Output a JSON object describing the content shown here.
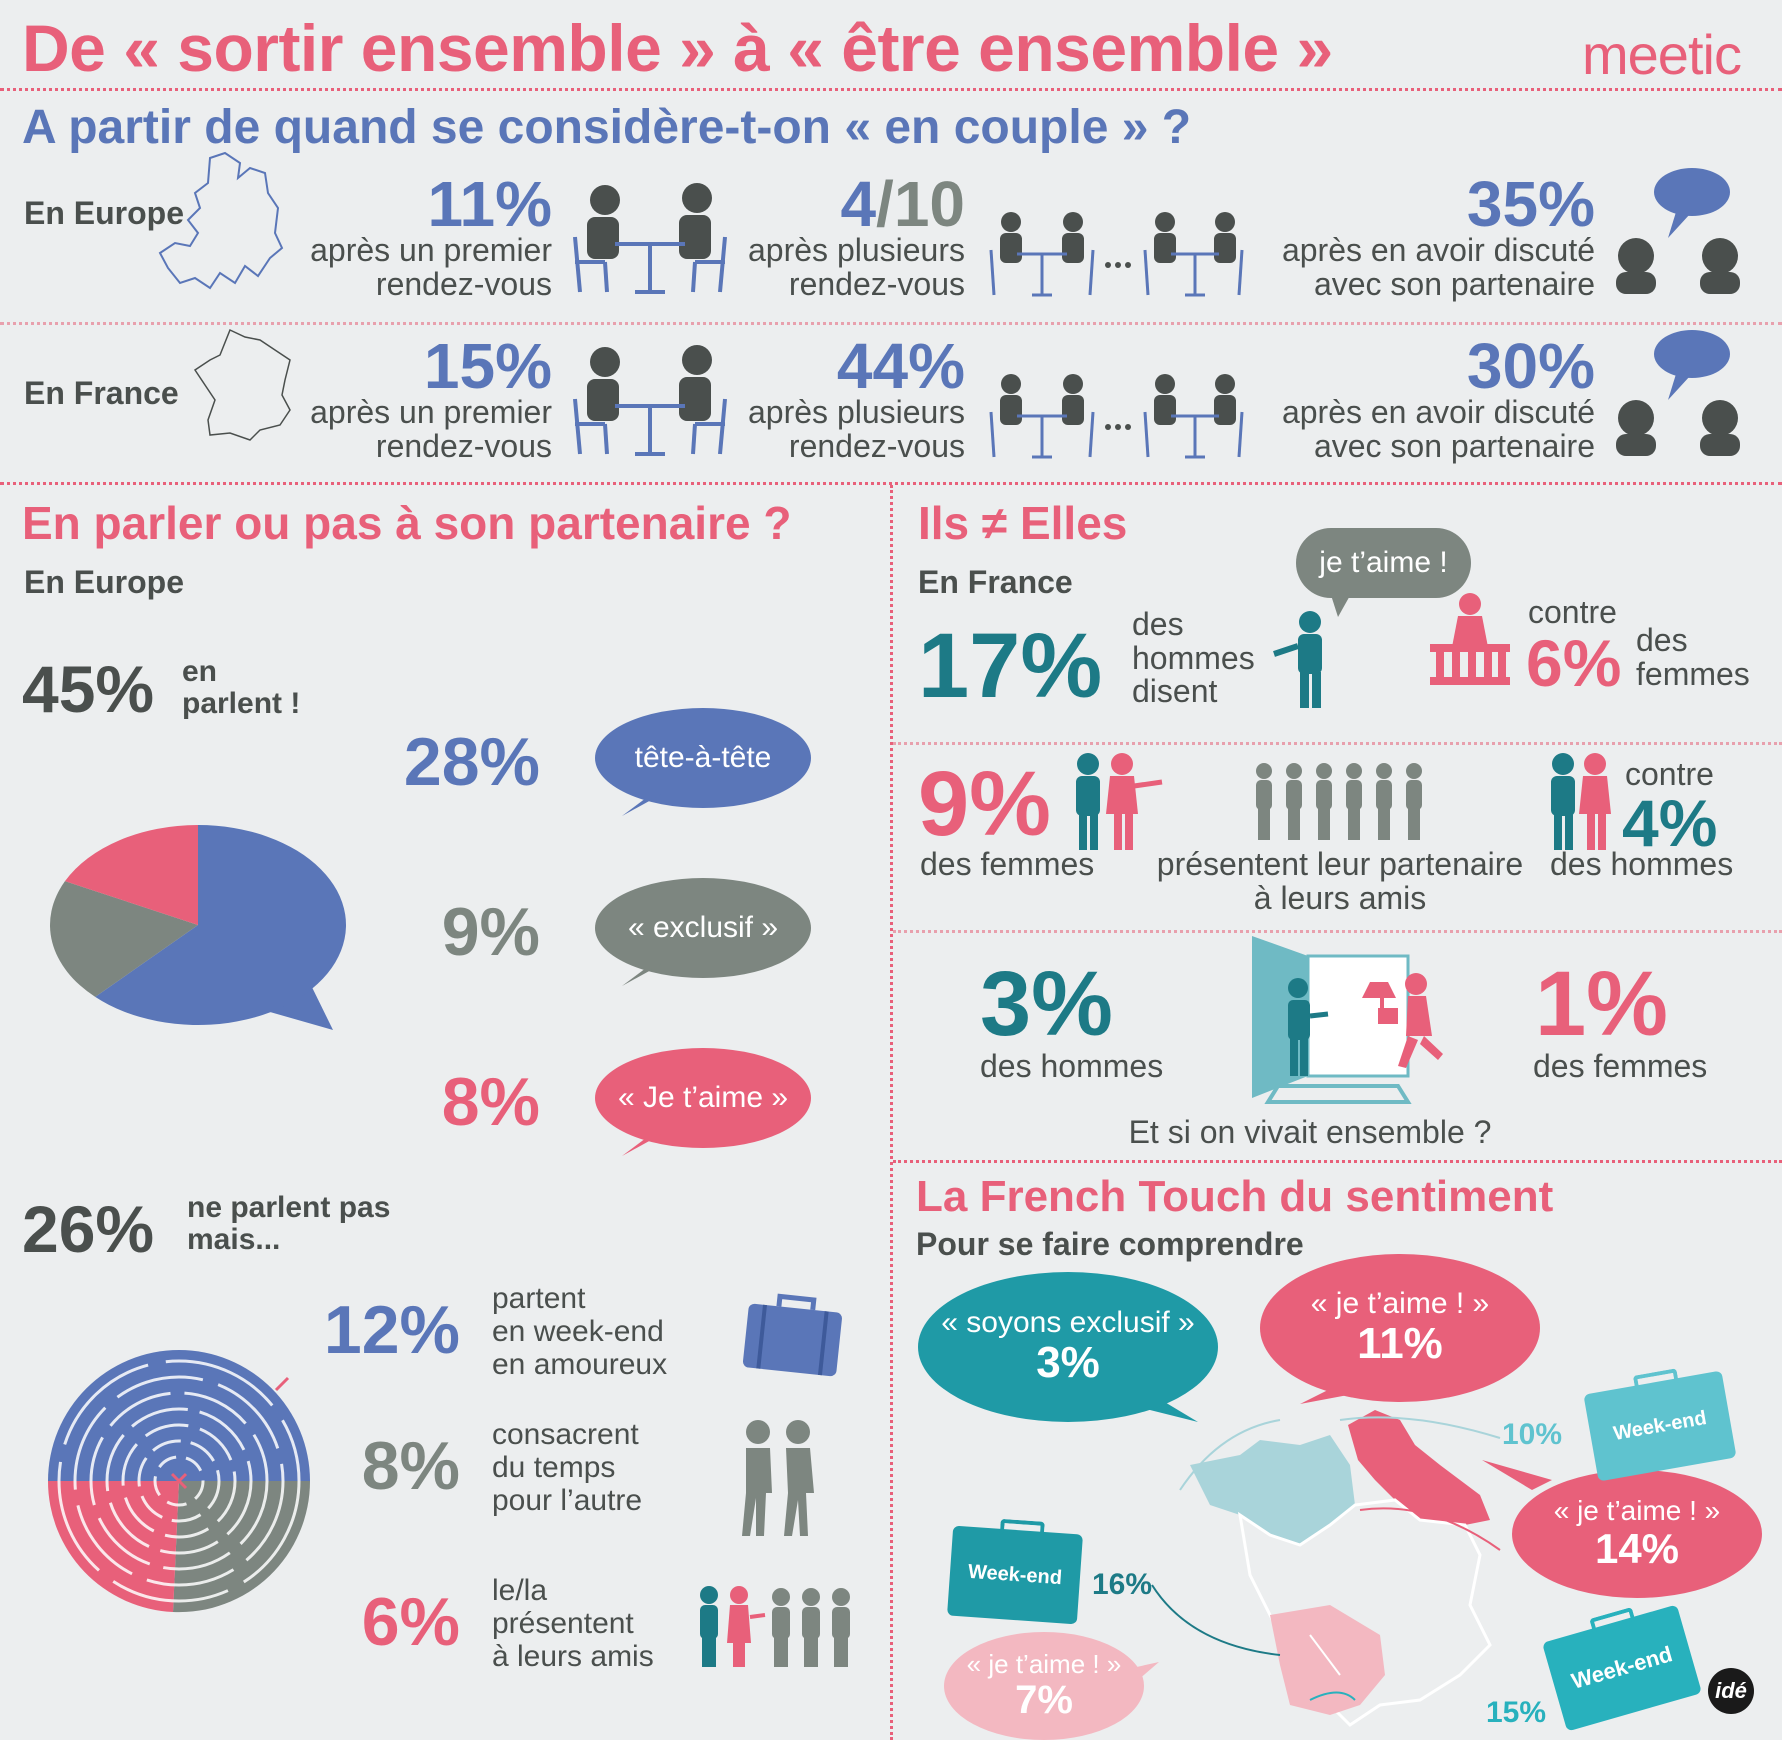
{
  "header": {
    "title": "De « sortir ensemble » à « être ensemble »",
    "brand": "meetic",
    "brand_color": "#e8607a"
  },
  "section1": {
    "title": "A partir de quand se considère-t-on « en couple » ?",
    "rows": [
      {
        "region": "En Europe",
        "stat1_value": "11%",
        "stat1_line1": "après un premier",
        "stat1_line2": "rendez-vous",
        "stat2_value_a": "4",
        "stat2_value_b": "/10",
        "stat2_line1": "après plusieurs",
        "stat2_line2": "rendez-vous",
        "stat3_value": "35%",
        "stat3_line1": "après en avoir discuté",
        "stat3_line2": "avec son partenaire"
      },
      {
        "region": "En France",
        "stat1_value": "15%",
        "stat1_line1": "après un premier",
        "stat1_line2": "rendez-vous",
        "stat2_value": "44%",
        "stat2_line1": "après plusieurs",
        "stat2_line2": "rendez-vous",
        "stat3_value": "30%",
        "stat3_line1": "après en avoir discuté",
        "stat3_line2": "avec son partenaire"
      }
    ]
  },
  "section2": {
    "title": "En parler ou pas à son partenaire ?",
    "subtitle": "En Europe",
    "talk": {
      "value": "45%",
      "line1": "en",
      "line2": "parlent !"
    },
    "talk_items": [
      {
        "value": "28%",
        "bubble": "tête-à-tête",
        "color": "#5a76b8"
      },
      {
        "value": "9%",
        "bubble": "« exclusif »",
        "color": "#7d8680"
      },
      {
        "value": "8%",
        "bubble": "« Je t’aime »",
        "color": "#e8607a"
      }
    ],
    "notalk": {
      "value": "26%",
      "line1": "ne parlent pas",
      "line2": "mais..."
    },
    "notalk_items": [
      {
        "value": "12%",
        "line1": "partent",
        "line2": "en week-end",
        "line3": "en amoureux",
        "color": "#5a76b8"
      },
      {
        "value": "8%",
        "line1": "consacrent",
        "line2": "du temps",
        "line3": "pour l’autre",
        "color": "#7d8680"
      },
      {
        "value": "6%",
        "line1": "le/la",
        "line2": "présentent",
        "line3": "à leurs amis",
        "color": "#e8607a"
      }
    ],
    "chart_data": {
      "type": "pie",
      "title": "",
      "categories": [
        "tête-à-tête",
        "« exclusif »",
        "« Je t’aime »"
      ],
      "values": [
        28,
        9,
        8
      ],
      "colors": [
        "#5a76b8",
        "#7d8680",
        "#e8607a"
      ]
    }
  },
  "section3": {
    "title": "Ils ≠ Elles",
    "subtitle": "En France",
    "row1": {
      "value_men": "17%",
      "men_l1": "des",
      "men_l2": "hommes",
      "men_l3": "disent",
      "bubble": "je t’aime !",
      "against": "contre",
      "value_women": "6%",
      "women_l1": "des",
      "women_l2": "femmes"
    },
    "row2": {
      "value_women": "9%",
      "women_label": "des femmes",
      "middle_l1": "présentent leur partenaire",
      "middle_l2": "à leurs amis",
      "against": "contre",
      "value_men": "4%",
      "men_label": "des hommes"
    },
    "row3": {
      "value_men": "3%",
      "men_label": "des hommes",
      "value_women": "1%",
      "women_label": "des femmes",
      "caption": "Et si on vivait ensemble ?"
    }
  },
  "section4": {
    "title": "La French Touch du sentiment",
    "subtitle": "Pour se faire comprendre",
    "bubbles": [
      {
        "label": "« soyons exclusif »",
        "value": "3%",
        "color": "#1f9aa6"
      },
      {
        "label": "« je t’aime ! »",
        "value": "11%",
        "color": "#e8607a"
      },
      {
        "label": "« je t’aime ! »",
        "value": "14%",
        "color": "#e8607a"
      },
      {
        "label": "« je t’aime ! »",
        "value": "7%",
        "color": "#f3b8c1"
      }
    ],
    "weekends": [
      {
        "label": "Week-end",
        "value": "10%",
        "color": "#5fc3cf"
      },
      {
        "label": "Week-end",
        "value": "16%",
        "color": "#1f9aa6"
      },
      {
        "label": "Week-end",
        "value": "15%",
        "color": "#28b1bd"
      }
    ]
  },
  "footer": {
    "logo": "idé"
  }
}
